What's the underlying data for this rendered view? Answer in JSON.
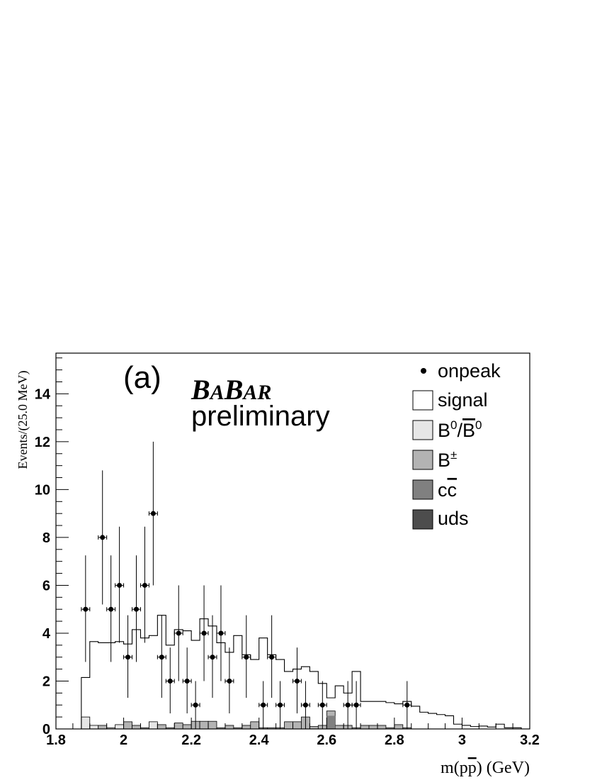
{
  "chart_data": {
    "type": "bar",
    "panel_label": "(a)",
    "brand": {
      "b1": "B",
      "a1": "A",
      "b2": "B",
      "ar": "AR"
    },
    "watermark_sub": "preliminary",
    "xlabel": {
      "pre": "m(p",
      "bar": "p",
      "post": ") (GeV)"
    },
    "ylabel": "Events/(25.0 MeV)",
    "xlim": [
      1.8,
      3.2
    ],
    "ylim": [
      0,
      15.7
    ],
    "x_ticks": [
      1.8,
      2,
      2.2,
      2.4,
      2.6,
      2.8,
      3,
      3.2
    ],
    "x_tick_labels": [
      "1.8",
      "2",
      "2.2",
      "2.4",
      "2.6",
      "2.8",
      "3",
      "3.2"
    ],
    "y_ticks": [
      0,
      2,
      4,
      6,
      8,
      10,
      12,
      14
    ],
    "y_tick_labels": [
      "0",
      "2",
      "4",
      "6",
      "8",
      "10",
      "12",
      "14"
    ],
    "bin_width": 0.025,
    "bin_edges_start": 1.875,
    "signal": [
      2.15,
      3.65,
      3.6,
      3.6,
      3.65,
      3.55,
      4.15,
      3.8,
      3.9,
      4.75,
      3.5,
      4.15,
      4.1,
      3.7,
      4.6,
      4.3,
      3.6,
      3.2,
      3.9,
      3.1,
      2.9,
      3.8,
      3.1,
      2.9,
      2.4,
      2.5,
      2.6,
      2.4,
      1.9,
      1.3,
      1.8,
      1.5,
      2.4,
      1.15,
      1.15,
      1.15,
      1.1,
      1.05,
      1.15,
      0.95,
      0.7,
      0.65,
      0.6,
      0.55,
      0.2,
      0.15,
      0.1,
      0.12,
      0.08,
      0.2,
      0.05,
      0.05
    ],
    "background_top": [
      0.5,
      0.15,
      0.15,
      0.05,
      0.18,
      0.3,
      0.15,
      0.05,
      0.3,
      0.18,
      0.05,
      0.25,
      0.18,
      0.32,
      0.32,
      0.32,
      0.05,
      0.15,
      0.05,
      0.15,
      0.3,
      0.05,
      0.05,
      0.05,
      0.3,
      0.3,
      0.5,
      0.1,
      0.15,
      0.75,
      0.15,
      0.15,
      0.05,
      0.15,
      0.15,
      0.15,
      0.05,
      0.18,
      0.05,
      0,
      0,
      0,
      0,
      0,
      0,
      0,
      0,
      0,
      0,
      0,
      0,
      0
    ],
    "bg_light_bins": [
      0,
      1,
      3,
      4,
      8
    ],
    "points": [
      {
        "x": 1.8875,
        "y": 5,
        "lo": 2.8,
        "hi": 7.25
      },
      {
        "x": 1.9375,
        "y": 8,
        "lo": 5.2,
        "hi": 10.8
      },
      {
        "x": 1.9625,
        "y": 5,
        "lo": 2.8,
        "hi": 7.25
      },
      {
        "x": 1.9875,
        "y": 6,
        "lo": 3.6,
        "hi": 8.45
      },
      {
        "x": 2.0125,
        "y": 3,
        "lo": 1.3,
        "hi": 4.75
      },
      {
        "x": 2.0375,
        "y": 5,
        "lo": 2.8,
        "hi": 7.25
      },
      {
        "x": 2.0625,
        "y": 6,
        "lo": 3.6,
        "hi": 8.45
      },
      {
        "x": 2.0875,
        "y": 9,
        "lo": 6.0,
        "hi": 12.0
      },
      {
        "x": 2.1125,
        "y": 3,
        "lo": 1.3,
        "hi": 4.75
      },
      {
        "x": 2.1375,
        "y": 2,
        "lo": 0.65,
        "hi": 3.4
      },
      {
        "x": 2.1625,
        "y": 4,
        "lo": 2.0,
        "hi": 6.0
      },
      {
        "x": 2.1875,
        "y": 2,
        "lo": 0.65,
        "hi": 3.4
      },
      {
        "x": 2.2125,
        "y": 1,
        "lo": 0,
        "hi": 2.0
      },
      {
        "x": 2.2375,
        "y": 4,
        "lo": 2.0,
        "hi": 6.0
      },
      {
        "x": 2.2625,
        "y": 3,
        "lo": 1.3,
        "hi": 4.75
      },
      {
        "x": 2.2875,
        "y": 4,
        "lo": 2.0,
        "hi": 6.0
      },
      {
        "x": 2.3125,
        "y": 2,
        "lo": 0.65,
        "hi": 3.4
      },
      {
        "x": 2.3625,
        "y": 3,
        "lo": 1.3,
        "hi": 4.75
      },
      {
        "x": 2.4125,
        "y": 1,
        "lo": 0,
        "hi": 2.0
      },
      {
        "x": 2.4375,
        "y": 3,
        "lo": 1.3,
        "hi": 4.75
      },
      {
        "x": 2.4625,
        "y": 1,
        "lo": 0,
        "hi": 2.0
      },
      {
        "x": 2.5125,
        "y": 2,
        "lo": 0.65,
        "hi": 3.4
      },
      {
        "x": 2.5375,
        "y": 1,
        "lo": 0,
        "hi": 2.0
      },
      {
        "x": 2.5875,
        "y": 1,
        "lo": 0,
        "hi": 2.0
      },
      {
        "x": 2.6625,
        "y": 1,
        "lo": 0,
        "hi": 2.0
      },
      {
        "x": 2.6875,
        "y": 1,
        "lo": 0,
        "hi": 2.0
      },
      {
        "x": 2.8375,
        "y": 1,
        "lo": 0,
        "hi": 2.0
      }
    ],
    "legend": [
      {
        "label": "onpeak",
        "style": "marker"
      },
      {
        "label": "signal",
        "fill": "#ffffff",
        "style": "box"
      },
      {
        "label": "B0/B0bar",
        "fill": "#e6e6e6",
        "style": "box"
      },
      {
        "label": "B±",
        "fill": "#b3b3b3",
        "style": "box"
      },
      {
        "label": "ccbar",
        "fill": "#808080",
        "style": "box"
      },
      {
        "label": "uds",
        "fill": "#4d4d4d",
        "style": "box"
      }
    ],
    "legend_text": {
      "b0_b": "B",
      "b0_sup": "0",
      "b0_slash": "/",
      "b0bar_b": "B",
      "b0bar_sup": "0",
      "bpm_b": "B",
      "bpm_sup": "±",
      "cc_c1": "c",
      "cc_c2": "c"
    },
    "colors": {
      "signal": "#ffffff",
      "b0": "#e6e6e6",
      "bpm": "#b3b3b3",
      "ccbar": "#808080",
      "uds": "#4d4d4d"
    }
  }
}
